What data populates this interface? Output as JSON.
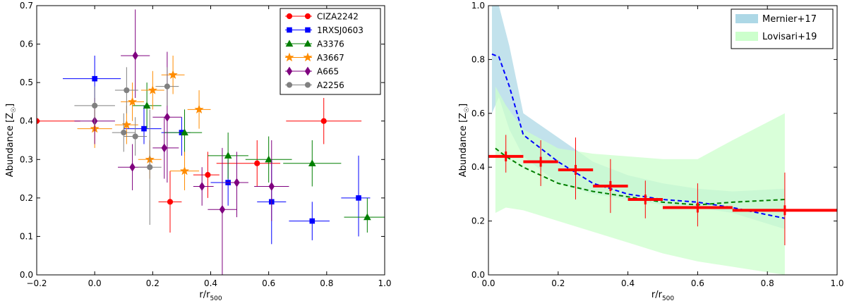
{
  "chart_data": [
    {
      "type": "scatter",
      "title": "",
      "xlabel_main": "r/r",
      "xlabel_sub": "500",
      "ylabel_main": "Abundance [Z",
      "ylabel_sun": "☉",
      "ylabel_close": "]",
      "xlim": [
        -0.2,
        1.0
      ],
      "ylim": [
        0.0,
        0.7
      ],
      "xticks": [
        -0.2,
        0.0,
        0.2,
        0.4,
        0.6,
        0.8,
        1.0
      ],
      "yticks": [
        0.0,
        0.1,
        0.2,
        0.3,
        0.4,
        0.5,
        0.6,
        0.7
      ],
      "xtick_labels": [
        "−0.2",
        "0.0",
        "0.2",
        "0.4",
        "0.6",
        "0.8",
        "1.0"
      ],
      "ytick_labels": [
        "0.0",
        "0.1",
        "0.2",
        "0.3",
        "0.4",
        "0.5",
        "0.6",
        "0.7"
      ],
      "legend_position": "top-right",
      "series": [
        {
          "name": "CIZA2242",
          "color": "#ff0000",
          "marker": "circle",
          "points": [
            [
              -0.2,
              0.4,
              0,
              0.15,
              0,
              0
            ],
            [
              0.26,
              0.19,
              0.04,
              0.04,
              0.08,
              0.08
            ],
            [
              0.39,
              0.26,
              0.05,
              0.04,
              0.06,
              0.06
            ],
            [
              0.56,
              0.29,
              0.14,
              0.08,
              0.06,
              0.06
            ],
            [
              0.79,
              0.4,
              0.13,
              0.13,
              0.06,
              0.06
            ]
          ]
        },
        {
          "name": "1RXSJ0603",
          "color": "#0000ff",
          "marker": "square",
          "points": [
            [
              0.0,
              0.51,
              0.11,
              0.09,
              0.06,
              0.06
            ],
            [
              0.17,
              0.38,
              0.07,
              0.06,
              0.04,
              0.06
            ],
            [
              0.3,
              0.37,
              0.07,
              0.03,
              0.06,
              0.04
            ],
            [
              0.46,
              0.24,
              0.06,
              0.04,
              0.06,
              0.06
            ],
            [
              0.61,
              0.19,
              0.05,
              0.05,
              0.11,
              0.11
            ],
            [
              0.75,
              0.14,
              0.08,
              0.06,
              0.05,
              0.05
            ],
            [
              0.91,
              0.2,
              0.06,
              0.04,
              0.1,
              0.11
            ]
          ]
        },
        {
          "name": "A3376",
          "color": "#007f00",
          "marker": "triangle",
          "points": [
            [
              0.18,
              0.44,
              0.05,
              0.05,
              0.06,
              0.06
            ],
            [
              0.31,
              0.37,
              0.07,
              0.06,
              0.06,
              0.06
            ],
            [
              0.46,
              0.31,
              0.07,
              0.07,
              0.06,
              0.06
            ],
            [
              0.6,
              0.3,
              0.08,
              0.08,
              0.06,
              0.06
            ],
            [
              0.75,
              0.29,
              0.1,
              0.1,
              0.06,
              0.06
            ],
            [
              0.94,
              0.15,
              0.08,
              0.06,
              0.04,
              0.05
            ]
          ]
        },
        {
          "name": "A3667",
          "color": "#ff8c00",
          "marker": "star",
          "points": [
            [
              0.0,
              0.38,
              0.06,
              0.06,
              0.05,
              0.05
            ],
            [
              0.11,
              0.39,
              0.04,
              0.04,
              0.05,
              0.05
            ],
            [
              0.13,
              0.45,
              0.04,
              0.04,
              0.05,
              0.05
            ],
            [
              0.2,
              0.48,
              0.04,
              0.04,
              0.05,
              0.05
            ],
            [
              0.27,
              0.52,
              0.04,
              0.04,
              0.05,
              0.05
            ],
            [
              0.36,
              0.43,
              0.04,
              0.04,
              0.05,
              0.05
            ],
            [
              0.19,
              0.3,
              0.04,
              0.04,
              0.05,
              0.05
            ],
            [
              0.31,
              0.27,
              0.05,
              0.05,
              0.05,
              0.05
            ]
          ]
        },
        {
          "name": "A665",
          "color": "#7f007f",
          "marker": "diamond",
          "points": [
            [
              0.0,
              0.4,
              0.07,
              0.07,
              0.06,
              0.06
            ],
            [
              0.14,
              0.57,
              0.05,
              0.05,
              0.11,
              0.12
            ],
            [
              0.13,
              0.28,
              0.05,
              0.05,
              0.06,
              0.06
            ],
            [
              0.25,
              0.41,
              0.05,
              0.05,
              0.17,
              0.17
            ],
            [
              0.24,
              0.33,
              0.04,
              0.05,
              0.08,
              0.08
            ],
            [
              0.37,
              0.23,
              0.03,
              0.04,
              0.05,
              0.05
            ],
            [
              0.44,
              0.17,
              0.05,
              0.05,
              0.17,
              0.16
            ],
            [
              0.49,
              0.24,
              0.04,
              0.04,
              0.09,
              0.08
            ],
            [
              0.61,
              0.23,
              0.06,
              0.06,
              0.09,
              0.12
            ]
          ]
        },
        {
          "name": "A2256",
          "color": "#808080",
          "marker": "circle",
          "points": [
            [
              0.0,
              0.44,
              0.07,
              0.07,
              0.05,
              0.05
            ],
            [
              0.11,
              0.48,
              0.04,
              0.04,
              0.06,
              0.06
            ],
            [
              0.1,
              0.37,
              0.04,
              0.04,
              0.05,
              0.05
            ],
            [
              0.14,
              0.36,
              0.04,
              0.04,
              0.05,
              0.05
            ],
            [
              0.19,
              0.28,
              0.04,
              0.04,
              0.15,
              0.15
            ],
            [
              0.25,
              0.49,
              0.04,
              0.04,
              0.05,
              0.05
            ]
          ]
        }
      ]
    },
    {
      "type": "line",
      "title": "",
      "xlabel_main": "r/r",
      "xlabel_sub": "500",
      "ylabel_main": "Abundance [Z",
      "ylabel_sun": "☉",
      "ylabel_close": "]",
      "xlim": [
        0.0,
        1.0
      ],
      "ylim": [
        0.0,
        1.0
      ],
      "xticks": [
        0.0,
        0.2,
        0.4,
        0.6,
        0.8,
        1.0
      ],
      "yticks": [
        0.0,
        0.2,
        0.4,
        0.6,
        0.8,
        1.0
      ],
      "xtick_labels": [
        "0.0",
        "0.2",
        "0.4",
        "0.6",
        "0.8",
        "1.0"
      ],
      "ytick_labels": [
        "0.0",
        "0.2",
        "0.4",
        "0.6",
        "0.8",
        "1.0"
      ],
      "legend_position": "top-right",
      "bands": [
        {
          "name": "Mernier+17",
          "color": "#add8e6",
          "x": [
            0.01,
            0.03,
            0.06,
            0.1,
            0.2,
            0.3,
            0.4,
            0.5,
            0.6,
            0.7,
            0.85
          ],
          "lower": [
            0.6,
            0.66,
            0.54,
            0.44,
            0.34,
            0.3,
            0.28,
            0.26,
            0.25,
            0.23,
            0.17
          ],
          "upper": [
            1.0,
            1.0,
            0.85,
            0.6,
            0.51,
            0.42,
            0.37,
            0.34,
            0.32,
            0.31,
            0.32
          ]
        },
        {
          "name": "Lovisari+19",
          "color": "#ccffcc",
          "x": [
            0.02,
            0.05,
            0.1,
            0.2,
            0.3,
            0.4,
            0.5,
            0.6,
            0.7,
            0.85
          ],
          "lower": [
            0.23,
            0.25,
            0.24,
            0.2,
            0.16,
            0.12,
            0.08,
            0.05,
            0.03,
            0.0
          ],
          "upper": [
            0.7,
            0.63,
            0.54,
            0.47,
            0.45,
            0.44,
            0.43,
            0.43,
            0.5,
            0.6
          ]
        }
      ],
      "lines": [
        {
          "name": "mernier-mean",
          "color": "#0000ff",
          "x": [
            0.01,
            0.03,
            0.06,
            0.1,
            0.2,
            0.3,
            0.4,
            0.5,
            0.6,
            0.7,
            0.85
          ],
          "y": [
            0.82,
            0.81,
            0.7,
            0.52,
            0.42,
            0.34,
            0.3,
            0.28,
            0.27,
            0.25,
            0.21
          ]
        },
        {
          "name": "lovisari-mean",
          "color": "#007f00",
          "x": [
            0.02,
            0.05,
            0.1,
            0.2,
            0.3,
            0.4,
            0.5,
            0.6,
            0.7,
            0.85
          ],
          "y": [
            0.47,
            0.44,
            0.4,
            0.34,
            0.31,
            0.29,
            0.27,
            0.26,
            0.27,
            0.28
          ]
        }
      ],
      "points": {
        "name": "binned-profile",
        "color": "#ff0000",
        "values": [
          [
            0.05,
            0.44,
            0.05,
            0.05,
            0.06,
            0.08
          ],
          [
            0.15,
            0.42,
            0.05,
            0.05,
            0.09,
            0.08
          ],
          [
            0.25,
            0.39,
            0.05,
            0.05,
            0.11,
            0.12
          ],
          [
            0.35,
            0.33,
            0.05,
            0.05,
            0.1,
            0.1
          ],
          [
            0.45,
            0.28,
            0.05,
            0.05,
            0.07,
            0.07
          ],
          [
            0.6,
            0.25,
            0.1,
            0.1,
            0.07,
            0.09
          ],
          [
            0.85,
            0.24,
            0.15,
            0.15,
            0.13,
            0.14
          ]
        ]
      }
    }
  ]
}
